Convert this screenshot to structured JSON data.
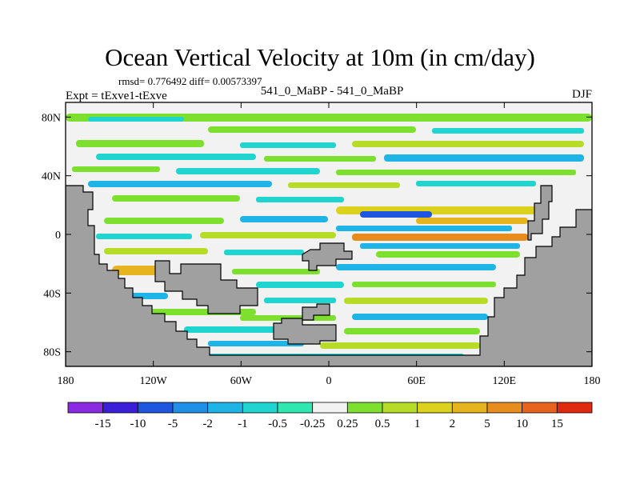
{
  "chart_data": {
    "type": "heatmap",
    "title": "Ocean Vertical Velocity at 10m (in cm/day)",
    "stats": "rmsd= 0.776492 diff= 0.00573397",
    "left_label": "Expt = tExve1-tExve",
    "center_label": "541_0_MaBP - 541_0_MaBP",
    "right_label": "DJF",
    "x_ticks": [
      {
        "value": -180,
        "label": "180"
      },
      {
        "value": -120,
        "label": "120W"
      },
      {
        "value": -60,
        "label": "60W"
      },
      {
        "value": 0,
        "label": "0"
      },
      {
        "value": 60,
        "label": "60E"
      },
      {
        "value": 120,
        "label": "120E"
      },
      {
        "value": 180,
        "label": "180"
      }
    ],
    "y_ticks": [
      {
        "value": 80,
        "label": "80N"
      },
      {
        "value": 40,
        "label": "40N"
      },
      {
        "value": 0,
        "label": "0"
      },
      {
        "value": -40,
        "label": "40S"
      },
      {
        "value": -80,
        "label": "80S"
      }
    ],
    "xlim": [
      -180,
      180
    ],
    "ylim": [
      -90,
      90
    ],
    "colorbar": {
      "labels": [
        "-15",
        "-10",
        "-5",
        "-2",
        "-1",
        "-0.5",
        "-0.25",
        "0.25",
        "0.5",
        "1",
        "2",
        "5",
        "10",
        "15"
      ],
      "colors": [
        "#8a2be2",
        "#3b1ed8",
        "#1e56e0",
        "#1e90e8",
        "#1eb4e6",
        "#20d4d0",
        "#2ee8b0",
        "#f2f2f2",
        "#7ee02e",
        "#b6dc28",
        "#dcd21e",
        "#e6b41e",
        "#e88c1e",
        "#e8641e",
        "#e02a10"
      ]
    },
    "land_color": "#a0a0a0"
  }
}
